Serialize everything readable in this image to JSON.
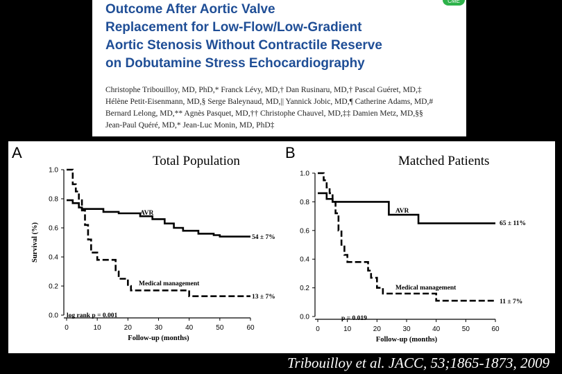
{
  "header": {
    "title_lines": [
      "Outcome After Aortic Valve",
      "Replacement for Low-Flow/Low-Gradient",
      "Aortic Stenosis Without Contractile Reserve",
      "on Dobutamine Stress Echocardiography"
    ],
    "badge": "CME",
    "author_lines": [
      "Christophe Tribouilloy, MD, PhD,* Franck Lévy, MD,† Dan Rusinaru, MD,† Pascal Guéret, MD,‡",
      "Hélène Petit-Eisenmann, MD,§ Serge Baleynaud, MD,|| Yannick Jobic, MD,¶ Catherine Adams, MD,#",
      "Bernard Lelong, MD,** Agnès Pasquet, MD,†† Christophe Chauvel, MD,‡‡ Damien Metz, MD,§§",
      "Jean-Paul Quéré, MD,* Jean-Luc Monin, MD, PhD‡"
    ]
  },
  "citation": "Tribouilloy et al. JACC, 53;1865-1873, 2009",
  "chart_data": [
    {
      "type": "line",
      "letter": "A",
      "title": "Total Population",
      "xlabel": "Follow-up (months)",
      "ylabel": "Survival (%)",
      "xlim": [
        0,
        60
      ],
      "ylim": [
        0,
        1.0
      ],
      "xticks": [
        0,
        10,
        20,
        30,
        40,
        50,
        60
      ],
      "yticks": [
        "0.0",
        "0.2",
        "0.4",
        "0.6",
        "0.8",
        "1.0"
      ],
      "annotation": "log rank p = 0.001",
      "series": [
        {
          "name": "AVR",
          "end_label": "54 ± 7%",
          "steps": [
            [
              0,
              0.79
            ],
            [
              2,
              0.77
            ],
            [
              4,
              0.74
            ],
            [
              5,
              0.73
            ],
            [
              12,
              0.71
            ],
            [
              17,
              0.7
            ],
            [
              24,
              0.68
            ],
            [
              28,
              0.66
            ],
            [
              32,
              0.63
            ],
            [
              35,
              0.6
            ],
            [
              38,
              0.58
            ],
            [
              43,
              0.56
            ],
            [
              48,
              0.55
            ],
            [
              50,
              0.54
            ],
            [
              60,
              0.54
            ]
          ]
        },
        {
          "name": "Medical management",
          "end_label": "13 ± 7%",
          "steps": [
            [
              0,
              1.0
            ],
            [
              2,
              0.9
            ],
            [
              3,
              0.85
            ],
            [
              4,
              0.8
            ],
            [
              5,
              0.72
            ],
            [
              6,
              0.62
            ],
            [
              7,
              0.52
            ],
            [
              8,
              0.43
            ],
            [
              10,
              0.38
            ],
            [
              16,
              0.3
            ],
            [
              17,
              0.25
            ],
            [
              20,
              0.2
            ],
            [
              21,
              0.17
            ],
            [
              40,
              0.13
            ],
            [
              60,
              0.13
            ]
          ]
        }
      ]
    },
    {
      "type": "line",
      "letter": "B",
      "title": "Matched Patients",
      "xlabel": "Follow-up (months)",
      "ylabel": "",
      "xlim": [
        0,
        60
      ],
      "ylim": [
        0,
        1.0
      ],
      "xticks": [
        0,
        10,
        20,
        30,
        40,
        50,
        60
      ],
      "yticks": [
        "0.0",
        "0.2",
        "0.4",
        "0.6",
        "0.8",
        "1.0"
      ],
      "annotation": "p = 0.019",
      "series": [
        {
          "name": "AVR",
          "end_label": "65 ± 11%",
          "steps": [
            [
              0,
              0.86
            ],
            [
              3,
              0.82
            ],
            [
              5,
              0.8
            ],
            [
              24,
              0.71
            ],
            [
              34,
              0.65
            ],
            [
              60,
              0.65
            ]
          ]
        },
        {
          "name": "Medical management",
          "end_label": "11 ± 7%",
          "steps": [
            [
              0,
              1.0
            ],
            [
              2,
              0.95
            ],
            [
              3,
              0.9
            ],
            [
              4,
              0.86
            ],
            [
              5,
              0.8
            ],
            [
              6,
              0.72
            ],
            [
              7,
              0.6
            ],
            [
              8,
              0.5
            ],
            [
              9,
              0.43
            ],
            [
              10,
              0.38
            ],
            [
              17,
              0.32
            ],
            [
              18,
              0.27
            ],
            [
              20,
              0.2
            ],
            [
              22,
              0.16
            ],
            [
              40,
              0.11
            ],
            [
              60,
              0.11
            ]
          ]
        }
      ]
    }
  ]
}
